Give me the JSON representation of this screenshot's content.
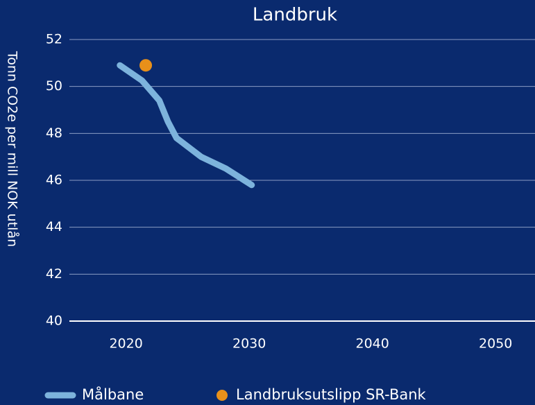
{
  "chart_data": {
    "type": "line",
    "title": "Landbruk",
    "ylabel": "Tonn CO2e per mill NOK utlån",
    "xlim": [
      2015.4,
      2053.2
    ],
    "xticks": [
      2020,
      2030,
      2040,
      2050
    ],
    "ylim": [
      40,
      52
    ],
    "yticks": [
      40,
      42,
      44,
      46,
      48,
      50,
      52
    ],
    "grid": true,
    "legend": "bottom",
    "series": [
      {
        "name": "Målbane",
        "type": "line",
        "color": "#7db3dc",
        "x": [
          2019.5,
          2021.3,
          2022.7,
          2023.4,
          2024.1,
          2026.1,
          2028.1,
          2030.2
        ],
        "values": [
          50.9,
          50.25,
          49.4,
          48.5,
          47.8,
          47.0,
          46.5,
          45.8
        ]
      },
      {
        "name": "Landbruksutslipp SR-Bank",
        "type": "scatter",
        "color": "#e8901a",
        "x": [
          2021.6
        ],
        "values": [
          50.9
        ]
      }
    ]
  }
}
